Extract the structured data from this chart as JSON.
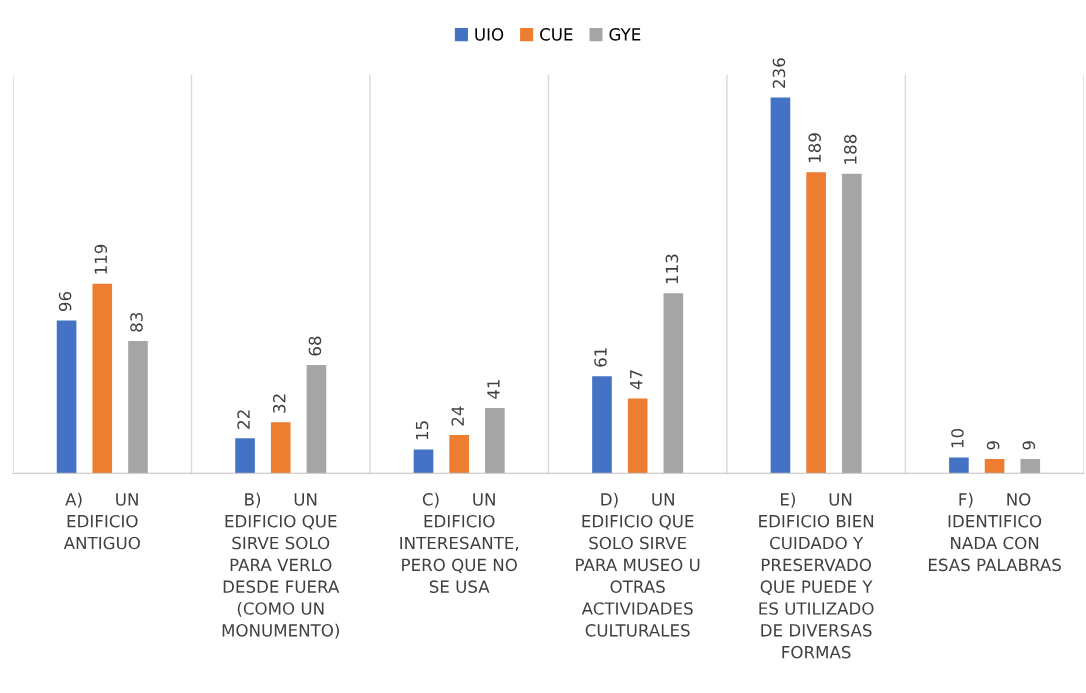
{
  "chart_data": {
    "type": "bar",
    "categories": [
      "A)      UN\nEDIFICIO\nANTIGUO",
      "B)      UN\nEDIFICIO QUE\nSIRVE SOLO\nPARA VERLO\nDESDE FUERA\n(COMO UN\nMONUMENTO)",
      "C)      UN\nEDIFICIO\nINTERESANTE,\nPERO QUE NO\nSE USA",
      "D)      UN\nEDIFICIO QUE\nSOLO SIRVE\nPARA MUSEO U\nOTRAS\nACTIVIDADES\nCULTURALES",
      "E)      UN\nEDIFICIO BIEN\nCUIDADO Y\nPRESERVADO\nQUE PUEDE Y\nES UTILIZADO\nDE DIVERSAS\nFORMAS",
      "F)      NO\nIDENTIFICO\nNADA CON\nESAS PALABRAS"
    ],
    "series": [
      {
        "name": "UIO",
        "color": "#4472c4",
        "values": [
          96,
          22,
          15,
          61,
          236,
          10
        ]
      },
      {
        "name": "CUE",
        "color": "#ed7d31",
        "values": [
          119,
          32,
          24,
          47,
          189,
          9
        ]
      },
      {
        "name": "GYE",
        "color": "#a5a5a5",
        "values": [
          83,
          68,
          41,
          113,
          188,
          9
        ]
      }
    ],
    "data_labels": true,
    "grid": "x",
    "legend": "top"
  }
}
